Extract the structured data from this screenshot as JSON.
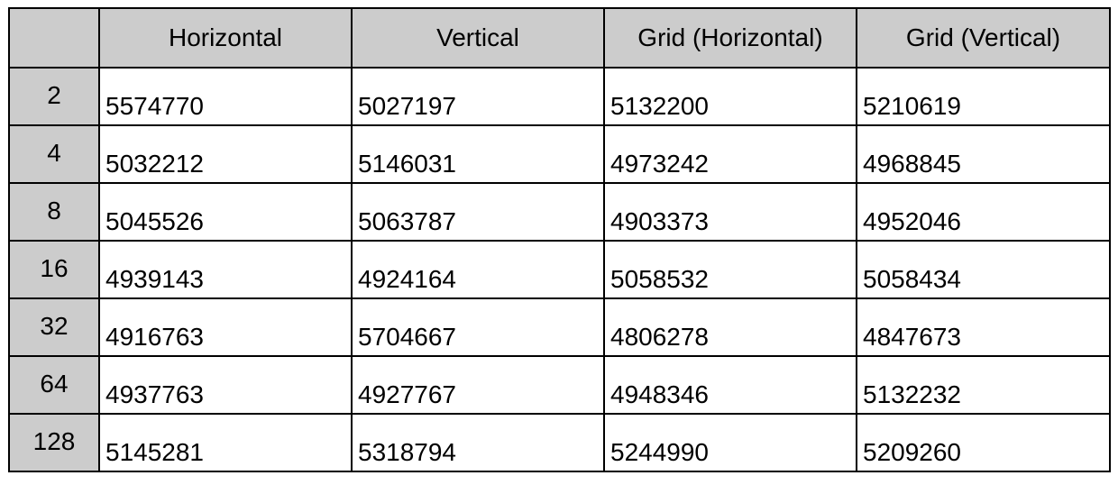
{
  "caption_fragment": "",
  "table": {
    "corner_label": "",
    "columns": [
      "Horizontal",
      "Vertical",
      "Grid (Horizontal)",
      "Grid (Vertical)"
    ],
    "rows": [
      {
        "label": "2",
        "values": [
          "5574770",
          "5027197",
          "5132200",
          "5210619"
        ]
      },
      {
        "label": "4",
        "values": [
          "5032212",
          "5146031",
          "4973242",
          "4968845"
        ]
      },
      {
        "label": "8",
        "values": [
          "5045526",
          "5063787",
          "4903373",
          "4952046"
        ]
      },
      {
        "label": "16",
        "values": [
          "4939143",
          "4924164",
          "5058532",
          "5058434"
        ]
      },
      {
        "label": "32",
        "values": [
          "4916763",
          "5704667",
          "4806278",
          "4847673"
        ]
      },
      {
        "label": "64",
        "values": [
          "4937763",
          "4927767",
          "4948346",
          "5132232"
        ]
      },
      {
        "label": "128",
        "values": [
          "5145281",
          "5318794",
          "5244990",
          "5209260"
        ]
      }
    ]
  },
  "colors": {
    "header_bg": "#cccccc",
    "cell_bg": "#ffffff",
    "border": "#000000"
  }
}
